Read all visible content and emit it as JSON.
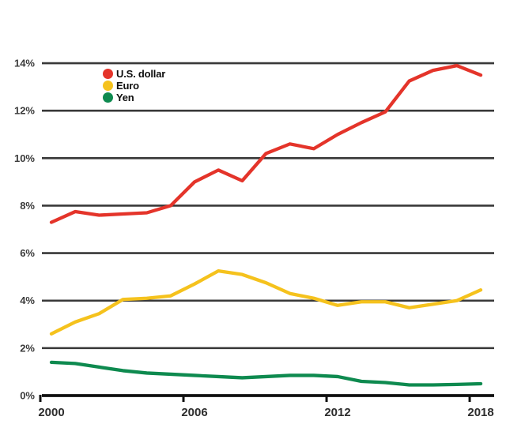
{
  "chart_data": {
    "type": "line",
    "title": "",
    "xlabel": "",
    "ylabel": "",
    "x": [
      2000,
      2001,
      2002,
      2003,
      2004,
      2005,
      2006,
      2007,
      2008,
      2009,
      2010,
      2011,
      2012,
      2013,
      2014,
      2015,
      2016,
      2017,
      2018
    ],
    "series": [
      {
        "name": "U.S. dollar",
        "color": "#e4342a",
        "values": [
          7.3,
          7.75,
          7.6,
          7.65,
          7.7,
          8.0,
          9.0,
          9.5,
          9.05,
          10.2,
          10.6,
          10.4,
          11.0,
          11.5,
          11.95,
          13.25,
          13.7,
          13.9,
          13.5
        ]
      },
      {
        "name": "Euro",
        "color": "#f5c21d",
        "values": [
          2.6,
          3.1,
          3.45,
          4.05,
          4.1,
          4.2,
          4.7,
          5.25,
          5.1,
          4.75,
          4.3,
          4.1,
          3.8,
          3.95,
          3.95,
          3.7,
          3.85,
          4.0,
          4.45
        ]
      },
      {
        "name": "Yen",
        "color": "#0e8a4f",
        "values": [
          1.4,
          1.35,
          1.2,
          1.05,
          0.95,
          0.9,
          0.85,
          0.8,
          0.75,
          0.8,
          0.85,
          0.85,
          0.8,
          0.6,
          0.55,
          0.45,
          0.45,
          0.47,
          0.5
        ]
      }
    ],
    "xticks": [
      2000,
      2006,
      2012,
      2018
    ],
    "xtick_labels": [
      "2000",
      "2006",
      "2012",
      "2018"
    ],
    "yticks": [
      0,
      2,
      4,
      6,
      8,
      10,
      12,
      14
    ],
    "ytick_labels": [
      "0%",
      "2%",
      "4%",
      "6%",
      "8%",
      "10%",
      "12%",
      "14%"
    ],
    "ylim": [
      0,
      14
    ],
    "grid": "horizontal",
    "legend_position": "top-left-inside"
  },
  "colors": {
    "background": "#ffffff",
    "gridline": "#383838",
    "axis": "#101010",
    "tick_label": "#3a3a3a"
  }
}
